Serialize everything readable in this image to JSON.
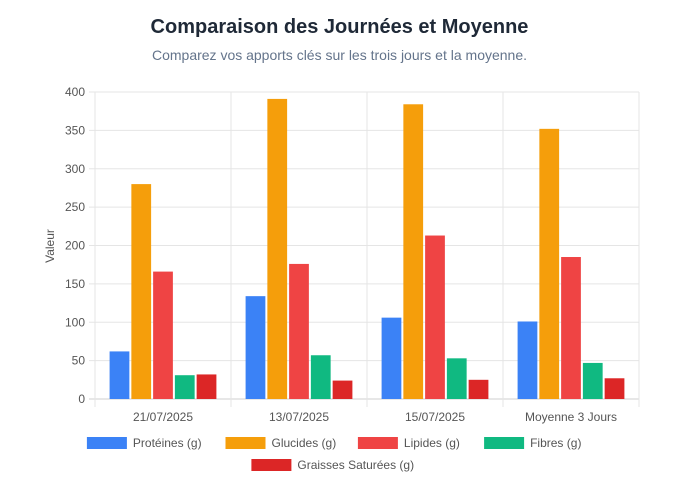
{
  "header": {
    "title": "Comparaison des Journées et Moyenne",
    "subtitle": "Comparez vos apports clés sur les trois jours et la moyenne."
  },
  "chart_data": {
    "type": "bar",
    "ylabel": "Valeur",
    "xlabel": "",
    "ylim": [
      0,
      400
    ],
    "yticks": [
      0,
      50,
      100,
      150,
      200,
      250,
      300,
      350,
      400
    ],
    "grid": true,
    "legend_position": "bottom",
    "categories": [
      "21/07/2025",
      "13/07/2025",
      "15/07/2025",
      "Moyenne 3 Jours"
    ],
    "series": [
      {
        "name": "Protéines (g)",
        "color": "#3b82f6",
        "values": [
          62,
          134,
          106,
          101
        ]
      },
      {
        "name": "Glucides (g)",
        "color": "#f59e0b",
        "values": [
          280,
          391,
          384,
          352
        ]
      },
      {
        "name": "Lipides (g)",
        "color": "#ef4444",
        "values": [
          166,
          176,
          213,
          185
        ]
      },
      {
        "name": "Fibres (g)",
        "color": "#10b981",
        "values": [
          31,
          57,
          53,
          47
        ]
      },
      {
        "name": "Graisses Saturées (g)",
        "color": "#dc2626",
        "values": [
          32,
          24,
          25,
          27
        ]
      }
    ]
  }
}
